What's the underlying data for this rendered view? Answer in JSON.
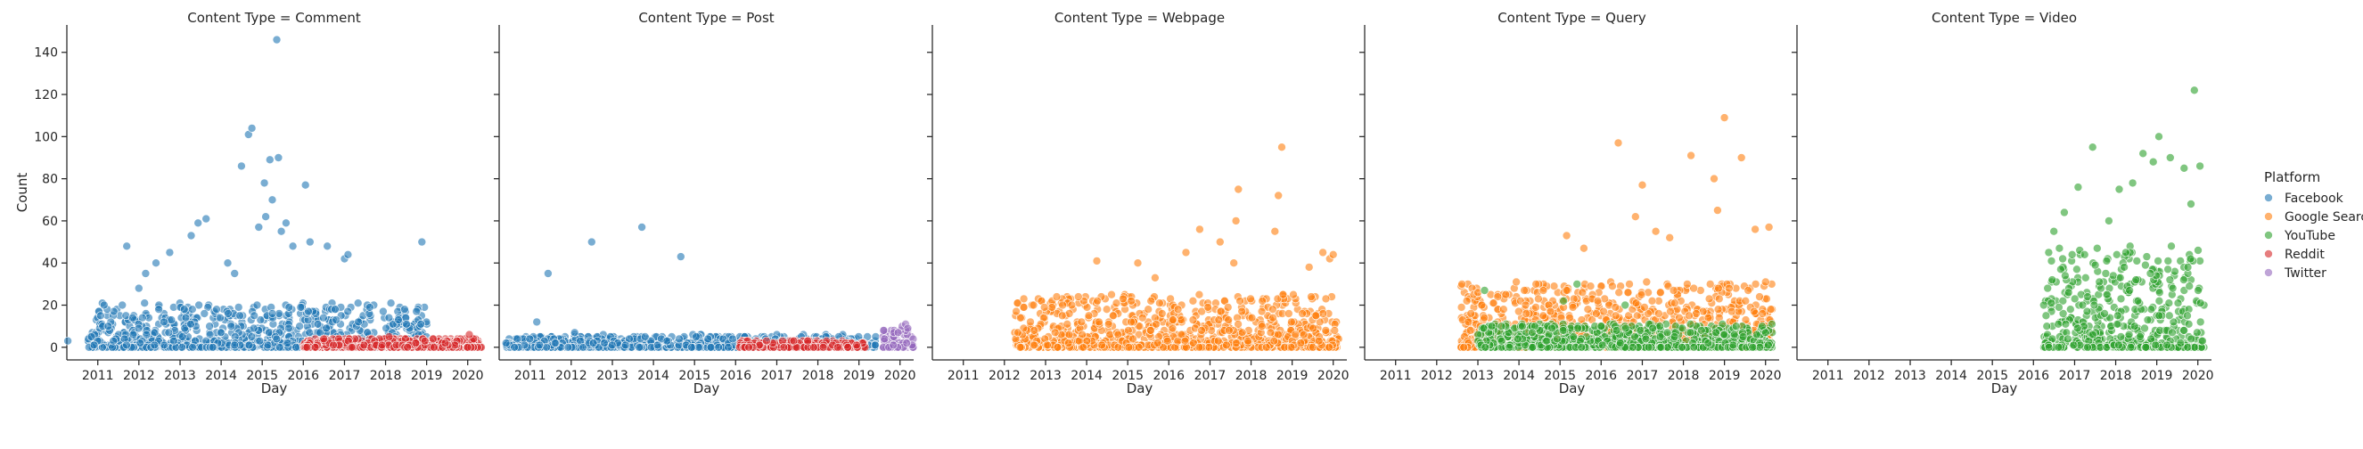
{
  "chart_data": {
    "type": "scatter",
    "xlabel": "Day",
    "ylabel": "Count",
    "ylim": [
      -6,
      153
    ],
    "xlim": [
      "2010-04-01",
      "2020-05-01"
    ],
    "yticks": [
      0,
      20,
      40,
      60,
      80,
      100,
      120,
      140
    ],
    "xticks": [
      "2011",
      "2012",
      "2013",
      "2014",
      "2015",
      "2016",
      "2017",
      "2018",
      "2019",
      "2020"
    ],
    "grid": false,
    "legend": {
      "title": "Platform",
      "placement": "right",
      "entries": [
        {
          "name": "Facebook",
          "color": "#1f77b4"
        },
        {
          "name": "Google Search",
          "color": "#ff7f0e"
        },
        {
          "name": "YouTube",
          "color": "#2ca02c"
        },
        {
          "name": "Reddit",
          "color": "#d62728"
        },
        {
          "name": "Twitter",
          "color": "#9467bd"
        }
      ]
    },
    "facets": [
      {
        "title": "Content Type = Comment",
        "series": [
          {
            "name": "Facebook",
            "color": "#1f77b4",
            "range": [
              "2010-10-01",
              "2019-01-15"
            ],
            "typical_max": 15,
            "points": [
              {
                "x": "2010-04-10",
                "y": 3
              },
              {
                "x": "2011-09-15",
                "y": 48
              },
              {
                "x": "2012-03-01",
                "y": 35
              },
              {
                "x": "2012-06-01",
                "y": 40
              },
              {
                "x": "2012-10-01",
                "y": 45
              },
              {
                "x": "2013-04-10",
                "y": 53
              },
              {
                "x": "2013-06-10",
                "y": 59
              },
              {
                "x": "2013-08-20",
                "y": 61
              },
              {
                "x": "2014-03-01",
                "y": 40
              },
              {
                "x": "2014-07-01",
                "y": 86
              },
              {
                "x": "2014-09-01",
                "y": 101
              },
              {
                "x": "2014-10-01",
                "y": 104
              },
              {
                "x": "2015-01-20",
                "y": 78
              },
              {
                "x": "2015-03-10",
                "y": 89
              },
              {
                "x": "2015-05-10",
                "y": 146
              },
              {
                "x": "2015-05-25",
                "y": 90
              },
              {
                "x": "2015-04-01",
                "y": 70
              },
              {
                "x": "2015-02-01",
                "y": 62
              },
              {
                "x": "2015-06-20",
                "y": 55
              },
              {
                "x": "2016-01-20",
                "y": 77
              },
              {
                "x": "2016-03-01",
                "y": 50
              },
              {
                "x": "2016-08-01",
                "y": 48
              },
              {
                "x": "2017-01-01",
                "y": 42
              },
              {
                "x": "2017-02-01",
                "y": 44
              },
              {
                "x": "2018-11-20",
                "y": 50
              },
              {
                "x": "2014-12-01",
                "y": 57
              },
              {
                "x": "2015-08-01",
                "y": 59
              },
              {
                "x": "2015-10-01",
                "y": 48
              },
              {
                "x": "2014-05-01",
                "y": 35
              },
              {
                "x": "2012-01-01",
                "y": 28
              }
            ]
          },
          {
            "name": "Reddit",
            "color": "#d62728",
            "range": [
              "2016-01-01",
              "2020-05-01"
            ],
            "typical_max": 3,
            "points": [
              {
                "x": "2016-07-01",
                "y": 4
              },
              {
                "x": "2018-02-01",
                "y": 5
              },
              {
                "x": "2020-01-15",
                "y": 6
              },
              {
                "x": "2019-03-01",
                "y": 4
              }
            ]
          }
        ]
      },
      {
        "title": "Content Type = Post",
        "series": [
          {
            "name": "Facebook",
            "color": "#1f77b4",
            "range": [
              "2010-06-01",
              "2019-06-01"
            ],
            "typical_max": 4,
            "points": [
              {
                "x": "2011-06-10",
                "y": 35
              },
              {
                "x": "2012-07-01",
                "y": 50
              },
              {
                "x": "2013-09-20",
                "y": 57
              },
              {
                "x": "2014-09-01",
                "y": 43
              },
              {
                "x": "2011-03-01",
                "y": 12
              },
              {
                "x": "2012-02-01",
                "y": 7
              },
              {
                "x": "2010-06-01",
                "y": 2
              }
            ]
          },
          {
            "name": "Reddit",
            "color": "#d62728",
            "range": [
              "2016-02-01",
              "2019-03-01"
            ],
            "typical_max": 2,
            "points": [
              {
                "x": "2016-10-01",
                "y": 3
              },
              {
                "x": "2017-06-01",
                "y": 3
              }
            ]
          },
          {
            "name": "Twitter",
            "color": "#9467bd",
            "range": [
              "2019-08-01",
              "2020-05-01"
            ],
            "typical_max": 6,
            "points": [
              {
                "x": "2020-01-20",
                "y": 10
              },
              {
                "x": "2020-02-20",
                "y": 11
              },
              {
                "x": "2020-03-10",
                "y": 9
              },
              {
                "x": "2019-12-15",
                "y": 7
              }
            ]
          }
        ]
      },
      {
        "title": "Content Type = Webpage",
        "series": [
          {
            "name": "Google Search",
            "color": "#ff7f0e",
            "range": [
              "2012-04-01",
              "2020-03-01"
            ],
            "typical_max": 18,
            "points": [
              {
                "x": "2014-04-01",
                "y": 41
              },
              {
                "x": "2015-04-01",
                "y": 40
              },
              {
                "x": "2016-06-01",
                "y": 45
              },
              {
                "x": "2016-10-01",
                "y": 56
              },
              {
                "x": "2017-04-01",
                "y": 50
              },
              {
                "x": "2017-08-01",
                "y": 40
              },
              {
                "x": "2017-09-10",
                "y": 75
              },
              {
                "x": "2017-08-20",
                "y": 60
              },
              {
                "x": "2018-09-01",
                "y": 72
              },
              {
                "x": "2018-10-01",
                "y": 95
              },
              {
                "x": "2018-08-01",
                "y": 55
              },
              {
                "x": "2019-06-01",
                "y": 38
              },
              {
                "x": "2019-10-01",
                "y": 45
              },
              {
                "x": "2019-12-01",
                "y": 42
              },
              {
                "x": "2020-01-01",
                "y": 44
              },
              {
                "x": "2015-09-01",
                "y": 33
              },
              {
                "x": "2013-06-01",
                "y": 20
              }
            ]
          }
        ]
      },
      {
        "title": "Content Type = Query",
        "series": [
          {
            "name": "Google Search",
            "color": "#ff7f0e",
            "range": [
              "2012-08-01",
              "2020-03-01"
            ],
            "typical_max": 22,
            "points": [
              {
                "x": "2014-06-01",
                "y": 30
              },
              {
                "x": "2015-03-01",
                "y": 53
              },
              {
                "x": "2015-08-01",
                "y": 47
              },
              {
                "x": "2016-06-01",
                "y": 97
              },
              {
                "x": "2016-11-01",
                "y": 62
              },
              {
                "x": "2017-01-01",
                "y": 77
              },
              {
                "x": "2017-05-01",
                "y": 55
              },
              {
                "x": "2017-09-01",
                "y": 52
              },
              {
                "x": "2018-03-10",
                "y": 91
              },
              {
                "x": "2018-10-01",
                "y": 80
              },
              {
                "x": "2018-11-01",
                "y": 65
              },
              {
                "x": "2019-01-01",
                "y": 109
              },
              {
                "x": "2019-06-01",
                "y": 90
              },
              {
                "x": "2019-10-01",
                "y": 56
              },
              {
                "x": "2020-02-01",
                "y": 57
              },
              {
                "x": "2013-01-01",
                "y": 26
              },
              {
                "x": "2014-03-01",
                "y": 20
              }
            ]
          },
          {
            "name": "YouTube",
            "color": "#2ca02c",
            "range": [
              "2013-01-01",
              "2020-03-01"
            ],
            "typical_max": 8,
            "points": [
              {
                "x": "2013-03-01",
                "y": 27
              },
              {
                "x": "2015-06-01",
                "y": 30
              },
              {
                "x": "2016-08-01",
                "y": 20
              },
              {
                "x": "2015-02-01",
                "y": 22
              }
            ]
          }
        ]
      },
      {
        "title": "Content Type = Video",
        "series": [
          {
            "name": "YouTube",
            "color": "#2ca02c",
            "range": [
              "2016-04-01",
              "2020-03-01"
            ],
            "typical_max": 35,
            "points": [
              {
                "x": "2016-07-01",
                "y": 55
              },
              {
                "x": "2016-10-01",
                "y": 64
              },
              {
                "x": "2017-02-01",
                "y": 76
              },
              {
                "x": "2017-06-10",
                "y": 95
              },
              {
                "x": "2017-11-01",
                "y": 60
              },
              {
                "x": "2018-02-01",
                "y": 75
              },
              {
                "x": "2018-06-01",
                "y": 78
              },
              {
                "x": "2018-09-01",
                "y": 92
              },
              {
                "x": "2018-12-01",
                "y": 88
              },
              {
                "x": "2019-01-20",
                "y": 100
              },
              {
                "x": "2019-05-01",
                "y": 90
              },
              {
                "x": "2019-09-01",
                "y": 85
              },
              {
                "x": "2019-12-01",
                "y": 122
              },
              {
                "x": "2020-01-20",
                "y": 86
              },
              {
                "x": "2019-11-01",
                "y": 68
              }
            ]
          }
        ]
      }
    ]
  }
}
